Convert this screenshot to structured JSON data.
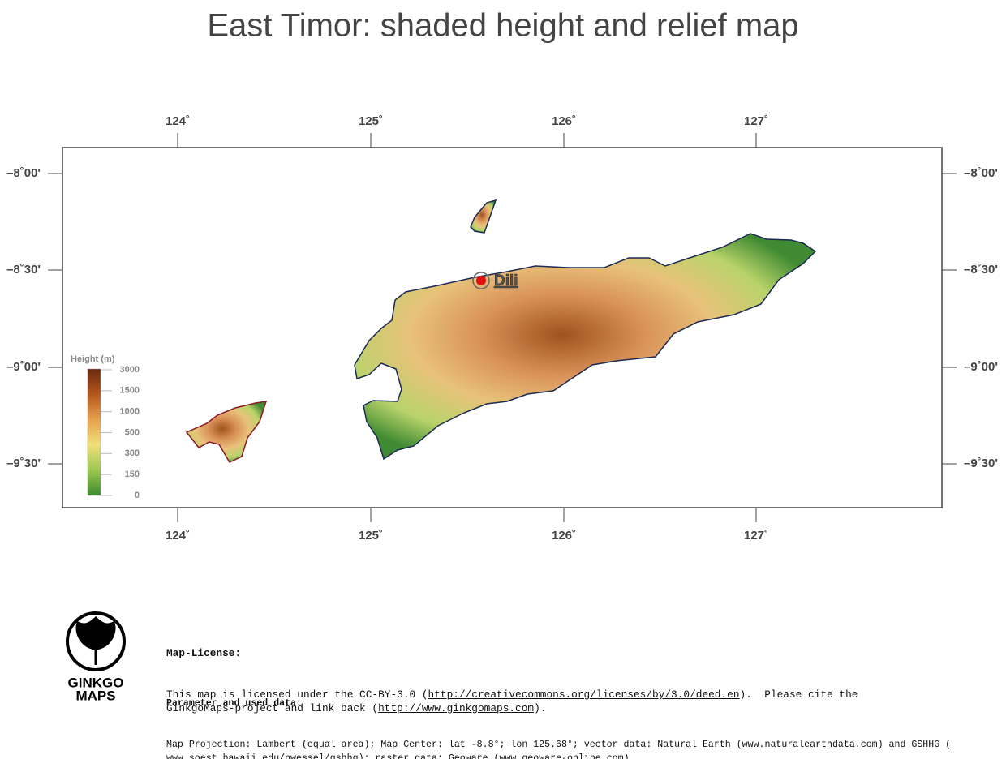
{
  "title": "East Timor: shaded height and relief map",
  "map": {
    "lon_labels": [
      "124˚",
      "125˚",
      "126˚",
      "127˚"
    ],
    "lat_labels": [
      "–8˚00'",
      "–8˚30'",
      "–9˚00'",
      "–9˚30'"
    ],
    "city": "Dili",
    "legend": {
      "title": "Height (m)",
      "labels": [
        "3000",
        "1500",
        "1000",
        "500",
        "300",
        "150",
        "0"
      ]
    }
  },
  "footer": {
    "logo": [
      "GINKGO",
      "MAPS"
    ],
    "license_title": "Map-License:",
    "license_lines": [
      [
        {
          "text": "This map is licensed under the CC-BY-3.0 ("
        },
        {
          "text": "http://creativecommons.org/licenses/by/3.0/deed.en",
          "link": true
        },
        {
          "text": ").  Please cite the"
        }
      ],
      [
        {
          "text": "GinkgoMaps-project and link back ("
        },
        {
          "text": "http://www.ginkgomaps.com",
          "link": true
        },
        {
          "text": ")."
        }
      ]
    ],
    "param_title": "Parameter and used data:",
    "param_lines": [
      [
        {
          "text": "Map Projection: Lambert (equal area); Map Center: lat -8.8°; lon 125.68°; vector data: Natural Earth ("
        },
        {
          "text": "www.naturalearthdata.com",
          "link": true
        },
        {
          "text": ") and GSHHG ("
        }
      ],
      [
        {
          "text": "www.soest.hawaii.edu/pwessel/gshhg",
          "link": true
        },
        {
          "text": "); raster data: Geoware ("
        },
        {
          "text": "www.geoware-online.com",
          "link": true
        },
        {
          "text": ")."
        }
      ]
    ]
  }
}
